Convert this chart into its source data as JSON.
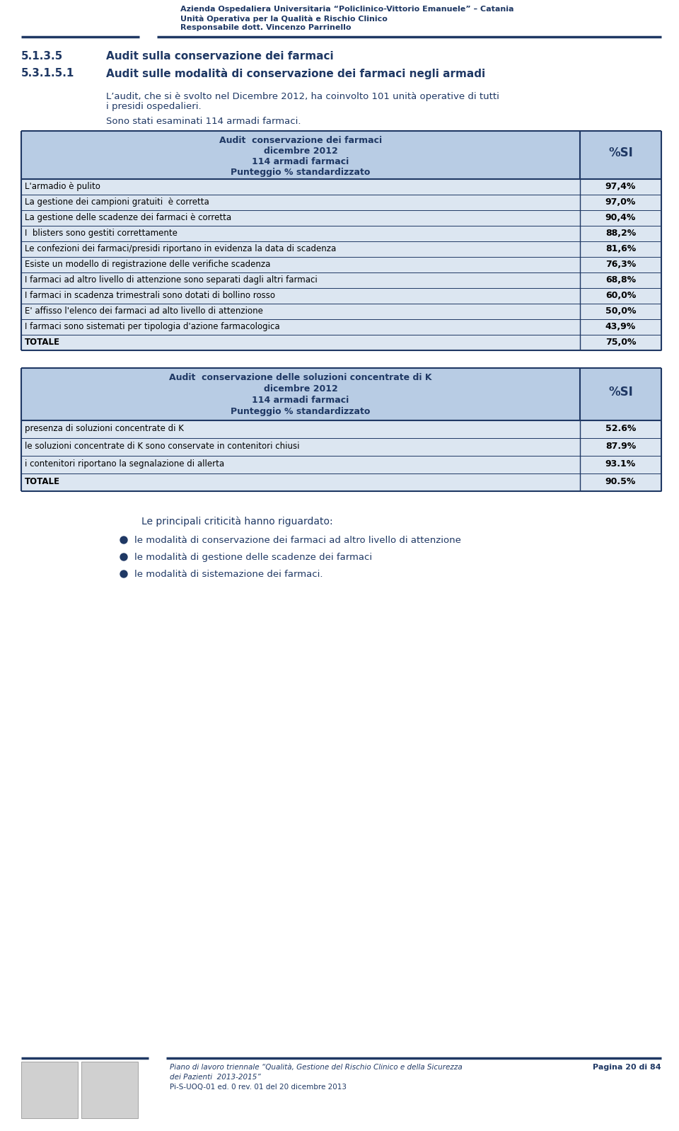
{
  "header_line1": "Azienda Ospedaliera Universitaria “Policlinico-Vittorio Emanuele” – Catania",
  "header_line2": "Unità Operativa per la Qualità e Rischio Clinico",
  "header_line3": "Responsabile dott. Vincenzo Parrinello",
  "section1_num": "5.1.3.5",
  "section1_title": "Audit sulla conservazione dei farmaci",
  "section2_num": "5.3.1.5.1",
  "section2_title": "Audit sulle modalità di conservazione dei farmaci negli armadi",
  "body_text1a": "L’audit, che si è svolto nel Dicembre 2012, ha coinvolto 101 unità operative di tutti",
  "body_text1b": "i presidi ospedalieri.",
  "body_text2": "Sono stati esaminati 114 armadi farmaci.",
  "table1_header_col1_line1": "Audit  conservazione dei farmaci",
  "table1_header_col1_line2": "dicembre 2012",
  "table1_header_col1_line3": "114 armadi farmaci",
  "table1_header_col1_line4": "Punteggio % standardizzato",
  "table1_header_col2": "%SI",
  "table1_rows": [
    [
      "L'armadio è pulito",
      "97,4%"
    ],
    [
      "La gestione dei campioni gratuiti  è corretta",
      "97,0%"
    ],
    [
      "La gestione delle scadenze dei farmaci è corretta",
      "90,4%"
    ],
    [
      "I  blisters sono gestiti correttamente",
      "88,2%"
    ],
    [
      "Le confezioni dei farmaci/presidi riportano in evidenza la data di scadenza",
      "81,6%"
    ],
    [
      "Esiste un modello di registrazione delle verifiche scadenza",
      "76,3%"
    ],
    [
      "I farmaci ad altro livello di attenzione sono separati dagli altri farmaci",
      "68,8%"
    ],
    [
      "I farmaci in scadenza trimestrali sono dotati di bollino rosso",
      "60,0%"
    ],
    [
      "E' affisso l'elenco dei farmaci ad alto livello di attenzione",
      "50,0%"
    ],
    [
      "I farmaci sono sistemati per tipologia d'azione farmacologica",
      "43,9%"
    ],
    [
      "TOTALE",
      "75,0%"
    ]
  ],
  "table2_header_col1_line1": "Audit  conservazione delle soluzioni concentrate di K",
  "table2_header_col1_line2": "dicembre 2012",
  "table2_header_col1_line3": "114 armadi farmaci",
  "table2_header_col1_line4": "Punteggio % standardizzato",
  "table2_header_col2": "%SI",
  "table2_rows": [
    [
      "presenza di soluzioni concentrate di K",
      "52.6%"
    ],
    [
      "le soluzioni concentrate di K sono conservate in contenitori chiusi",
      "87.9%"
    ],
    [
      "i contenitori riportano la segnalazione di allerta",
      "93.1%"
    ],
    [
      "TOTALE",
      "90.5%"
    ]
  ],
  "criticita_title": "Le principali criticità hanno riguardato:",
  "criticita_items": [
    "le modalità di conservazione dei farmaci ad altro livello di attenzione",
    "le modalità di gestione delle scadenze dei farmaci",
    "le modalità di sistemazione dei farmaci."
  ],
  "footer_left_line1": "Piano di lavoro triennale “Qualità, Gestione del Rischio Clinico e della Sicurezza",
  "footer_left_line2": "dei Pazienti  2013-2015”",
  "footer_left_line3": "Pi-S-UOQ-01 ed. 0 rev. 01 del 20 dicembre 2013",
  "footer_right": "Pagina 20 di 84",
  "bg_color": "#ffffff",
  "table_header_bg": "#b8cce4",
  "table_row_bg": "#dce6f1",
  "table_border": "#1f3864",
  "text_dark": "#1f3864",
  "text_black": "#000000",
  "line_color": "#1f3864"
}
